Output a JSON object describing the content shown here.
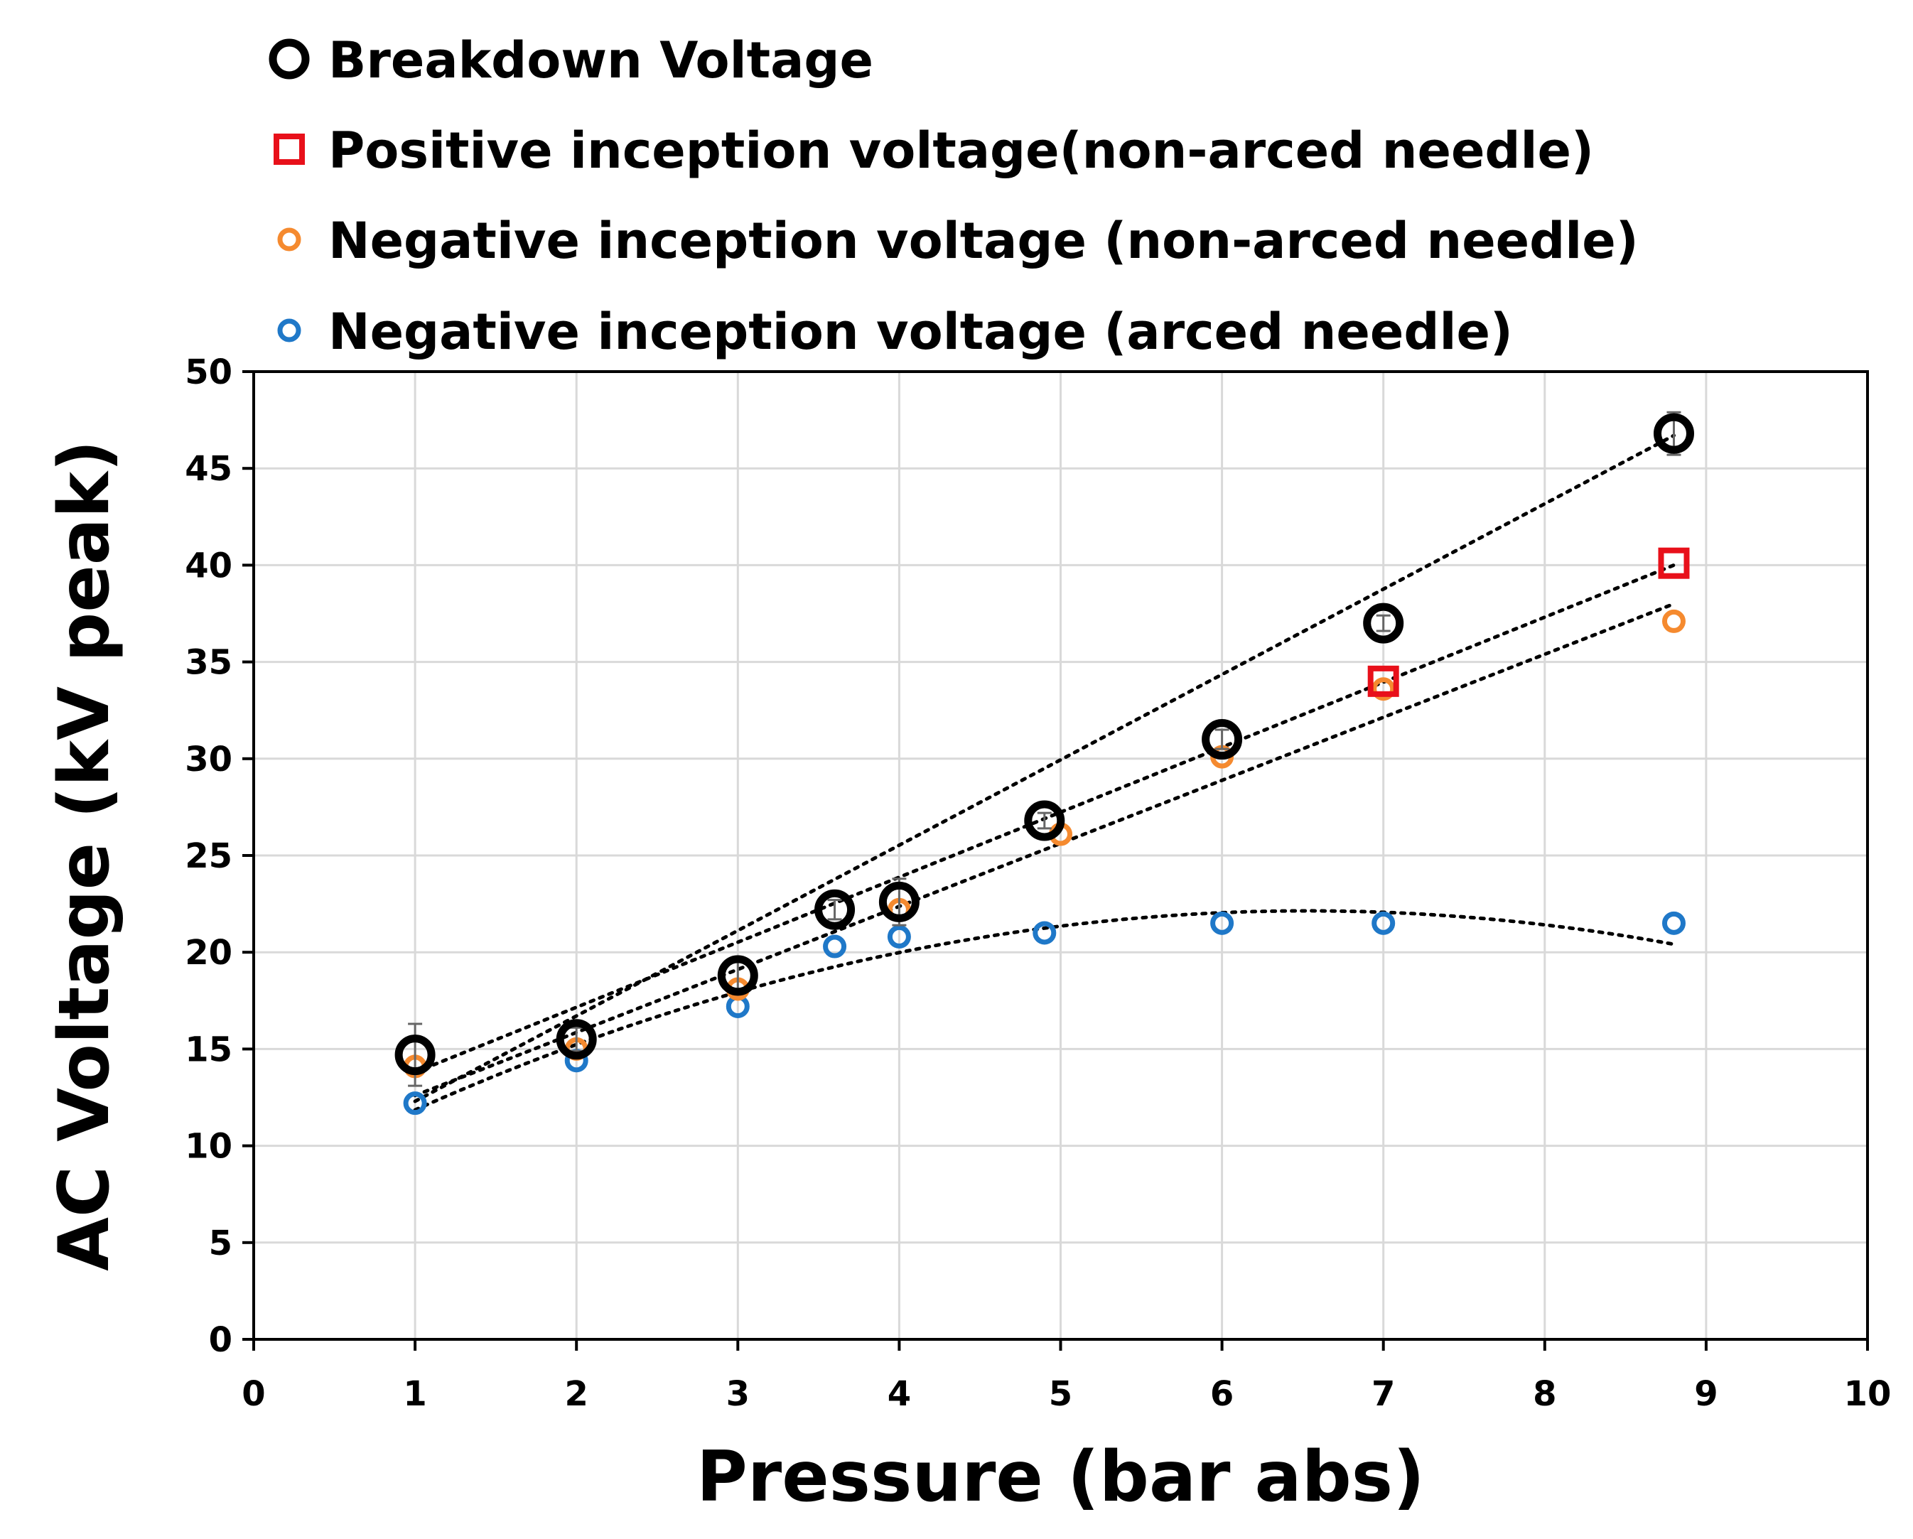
{
  "chart_data": {
    "type": "scatter",
    "title": "",
    "xlabel": "Pressure (bar abs)",
    "ylabel": "AC Voltage (kV peak)",
    "xlim": [
      0,
      10
    ],
    "ylim": [
      0,
      50
    ],
    "xticks": [
      0,
      1,
      2,
      3,
      4,
      5,
      6,
      7,
      8,
      9,
      10
    ],
    "yticks": [
      0,
      5,
      10,
      15,
      20,
      25,
      30,
      35,
      40,
      45,
      50
    ],
    "grid": true,
    "legend_position": "top",
    "series": [
      {
        "name": "Breakdown Voltage",
        "marker": "circle-large",
        "color": "#000000",
        "x": [
          1,
          2,
          3,
          3.6,
          4,
          4.9,
          6,
          7,
          8.8
        ],
        "y": [
          14.7,
          15.5,
          18.8,
          22.2,
          22.6,
          26.8,
          31.0,
          37.0,
          46.8
        ],
        "error": [
          1.6,
          0.6,
          0.8,
          0.5,
          1.2,
          0.4,
          0.5,
          0.4,
          1.1
        ],
        "trendline": {
          "kind": "linear",
          "x": [
            1,
            8.8
          ],
          "y": [
            12.3,
            46.7
          ]
        }
      },
      {
        "name": "Positive inception voltage(non-arced needle)",
        "marker": "square",
        "color": "#e8101a",
        "x": [
          7,
          8.8
        ],
        "y": [
          34.0,
          40.1
        ],
        "trendline": {
          "kind": "linear",
          "x": [
            1,
            8.8
          ],
          "y": [
            13.8,
            40.0
          ]
        }
      },
      {
        "name": "Negative inception voltage (non-arced needle)",
        "marker": "circle-small",
        "color": "#f58a2f",
        "x": [
          1,
          2,
          3,
          4,
          5,
          6,
          7,
          8.8
        ],
        "y": [
          14.1,
          15.0,
          18.1,
          22.2,
          26.1,
          30.1,
          33.6,
          37.1
        ],
        "trendline": {
          "kind": "linear",
          "x": [
            1,
            8.8
          ],
          "y": [
            12.6,
            38.0
          ]
        }
      },
      {
        "name": "Negative inception voltage (arced needle)",
        "marker": "circle-small",
        "color": "#1f78c8",
        "x": [
          1,
          2,
          3,
          3.6,
          4,
          4.9,
          6,
          7,
          8.8
        ],
        "y": [
          12.2,
          14.4,
          17.2,
          20.3,
          20.8,
          21.0,
          21.5,
          21.5,
          21.5
        ],
        "trendline": {
          "kind": "polynomial",
          "coefficients": [
            7.8,
            4.39,
            -0.336
          ]
        }
      }
    ]
  }
}
